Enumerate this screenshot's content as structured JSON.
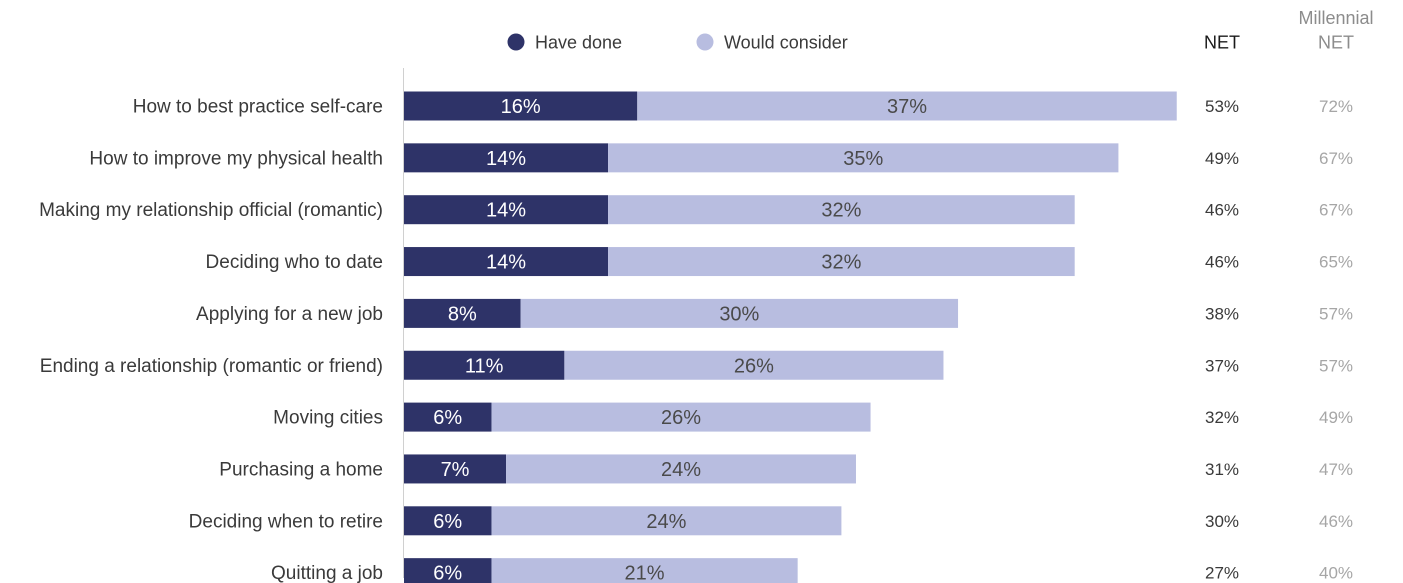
{
  "chart_data": {
    "type": "bar",
    "orientation": "horizontal",
    "stacked": true,
    "categories": [
      "How to best practice self-care",
      "How to improve my physical health",
      "Making my relationship official (romantic)",
      "Deciding who to date",
      "Applying for a new job",
      "Ending a relationship (romantic or friend)",
      "Moving cities",
      "Purchasing a home",
      "Deciding when to retire",
      "Quitting a job"
    ],
    "series": [
      {
        "name": "Have done",
        "color": "#2e3368",
        "values": [
          16,
          14,
          14,
          14,
          8,
          11,
          6,
          7,
          6,
          6
        ],
        "labels": [
          "16%",
          "14%",
          "14%",
          "14%",
          "8%",
          "11%",
          "6%",
          "7%",
          "6%",
          "6%"
        ]
      },
      {
        "name": "Would consider",
        "color": "#b8bde0",
        "values": [
          37,
          35,
          32,
          32,
          30,
          26,
          26,
          24,
          24,
          21
        ],
        "labels": [
          "37%",
          "35%",
          "32%",
          "32%",
          "30%",
          "26%",
          "26%",
          "24%",
          "24%",
          "21%"
        ]
      }
    ],
    "legend": "top",
    "net": {
      "header": "NET",
      "values": [
        "53%",
        "49%",
        "46%",
        "46%",
        "38%",
        "37%",
        "32%",
        "31%",
        "30%",
        "27%"
      ]
    },
    "millennial_net": {
      "header_line1": "Millennial",
      "header_line2": "NET",
      "values": [
        "72%",
        "67%",
        "67%",
        "65%",
        "57%",
        "57%",
        "49%",
        "47%",
        "46%",
        "40%"
      ]
    }
  }
}
